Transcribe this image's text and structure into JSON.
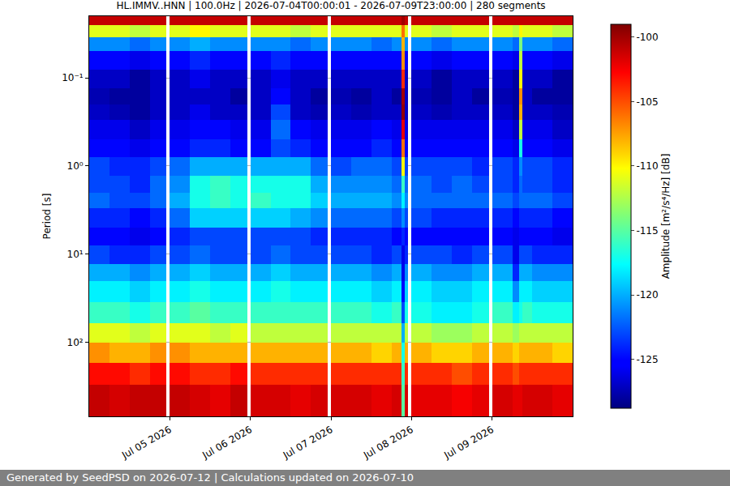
{
  "chart_data": {
    "type": "heatmap",
    "title": "HL.IMMV..HNN | 100.0Hz | 2026-07-04T00:00:01 - 2026-07-09T23:00:00 | 280 segments",
    "y_label": "Period [s]",
    "colorbar_label": "Amplitude [m²/s⁴/Hz] [dB]",
    "footer": "Generated by SeedPSD on 2026-07-12 | Calculations updated on 2026-07-10",
    "color": "jet",
    "log": "y",
    "grid": "y",
    "x_edges": [
      "2026-07-04 00:00",
      "2026-07-04 06:00",
      "2026-07-04 12:00",
      "2026-07-04 18:00",
      "2026-07-04 23:00",
      "2026-07-05 00:00",
      "2026-07-05 06:00",
      "2026-07-05 12:00",
      "2026-07-05 18:00",
      "2026-07-05 23:00",
      "2026-07-06 00:00",
      "2026-07-06 06:00",
      "2026-07-06 12:00",
      "2026-07-06 18:00",
      "2026-07-06 23:00",
      "2026-07-07 00:00",
      "2026-07-07 06:00",
      "2026-07-07 12:00",
      "2026-07-07 18:00",
      "2026-07-07 21:00",
      "2026-07-07 22:00",
      "2026-07-07 23:00",
      "2026-07-08 00:00",
      "2026-07-08 06:00",
      "2026-07-08 12:00",
      "2026-07-08 18:00",
      "2026-07-08 23:00",
      "2026-07-09 00:00",
      "2026-07-09 06:00",
      "2026-07-09 08:00",
      "2026-07-09 09:00",
      "2026-07-09 12:00",
      "2026-07-09 18:00",
      "2026-07-10 00:00"
    ],
    "y_edges": [
      0.02,
      0.025,
      0.035,
      0.05,
      0.08,
      0.13,
      0.2,
      0.3,
      0.5,
      0.8,
      1.3,
      2,
      3,
      5,
      8,
      13,
      20,
      35,
      60,
      100,
      170,
      300,
      690
    ],
    "z": [
      [
        -101,
        -101,
        -101,
        -101,
        null,
        -101,
        -101,
        -101,
        -101,
        null,
        -101,
        -101,
        -101,
        -101,
        null,
        -101,
        -101,
        -101,
        -101,
        -100,
        -101,
        null,
        -101,
        -101,
        -101,
        -101,
        null,
        -101,
        -101,
        -101,
        -101,
        -101,
        -101
      ],
      [
        -111,
        -111,
        -112,
        -111,
        null,
        -111,
        -110,
        -111,
        -111,
        null,
        -111,
        -111,
        -112,
        -111,
        null,
        -111,
        -111,
        -111,
        -111,
        -106,
        -111,
        null,
        -111,
        -112,
        -111,
        -111,
        null,
        -111,
        -112,
        -110,
        -111,
        -111,
        -112
      ],
      [
        -121,
        -121,
        -122,
        -121,
        null,
        -121,
        -120,
        -121,
        -121,
        null,
        -121,
        -121,
        -122,
        -121,
        null,
        -121,
        -121,
        -122,
        -121,
        -108,
        -121,
        null,
        -121,
        -122,
        -121,
        -121,
        null,
        -121,
        -122,
        -114,
        -121,
        -121,
        -122
      ],
      [
        -125,
        -125,
        -126,
        -125,
        null,
        -125,
        -124,
        -125,
        -125,
        null,
        -125,
        -124,
        -125,
        -125,
        null,
        -125,
        -125,
        -125,
        -125,
        -107,
        -125,
        null,
        -125,
        -126,
        -125,
        -125,
        null,
        -125,
        -126,
        -112,
        -125,
        -125,
        -126
      ],
      [
        -127,
        -127,
        -128,
        -127,
        null,
        -127,
        -126,
        -127,
        -127,
        null,
        -127,
        -126,
        -127,
        -127,
        null,
        -127,
        -127,
        -127,
        -127,
        -104,
        -127,
        null,
        -127,
        -128,
        -127,
        -127,
        null,
        -127,
        -128,
        -110,
        -127,
        -127,
        -128
      ],
      [
        -127.5,
        -128,
        -128,
        -127,
        null,
        -127,
        -127,
        -127,
        -128,
        null,
        -127,
        -125,
        -127,
        -128,
        null,
        -127.5,
        -128,
        -127,
        -128,
        -100,
        -127,
        null,
        -127.5,
        -128,
        -127,
        -128,
        null,
        -127.5,
        -128,
        -107,
        -127,
        -128,
        -128
      ],
      [
        -127,
        -127.5,
        -128,
        -127,
        null,
        -127,
        -126,
        -127,
        -127,
        null,
        -127,
        -123,
        -127,
        -127.5,
        null,
        -127,
        -127.5,
        -127,
        -127,
        -99.5,
        -127,
        null,
        -127,
        -127.5,
        -127,
        -127,
        null,
        -127,
        -128,
        -108,
        -127,
        -127,
        -127.5
      ],
      [
        -126,
        -126,
        -127,
        -126,
        null,
        -126,
        -125,
        -125,
        -126,
        null,
        -126,
        -122,
        -125,
        -126,
        null,
        -126,
        -126,
        -125,
        -126,
        -102,
        -126,
        null,
        -126,
        -126,
        -126,
        -126,
        null,
        -126,
        -127,
        -112,
        -126,
        -126,
        -127
      ],
      [
        -125,
        -125,
        -126,
        -125,
        null,
        -125,
        -124,
        -124,
        -125,
        null,
        -125,
        -123,
        -124,
        -125,
        null,
        -125,
        -125,
        -124,
        -125,
        -106,
        -125,
        null,
        -125,
        -125,
        -125,
        -125,
        null,
        -125,
        -126,
        -117,
        -125,
        -125,
        -126
      ],
      [
        -123,
        -124,
        -124,
        -123,
        null,
        -122,
        -120,
        -120,
        -120,
        null,
        -120,
        -120,
        -120,
        -122,
        null,
        -123,
        -122,
        -122,
        -123,
        -110,
        -123,
        null,
        -123,
        -123,
        -123,
        -124,
        null,
        -123,
        -124,
        -121,
        -123,
        -123,
        -124
      ],
      [
        -123,
        -123,
        -124,
        -122,
        null,
        -121,
        -117,
        -116,
        -117,
        null,
        -117,
        -117,
        -117,
        -120,
        null,
        -121,
        -121,
        -121,
        -122,
        -116,
        -122,
        null,
        -122,
        -123,
        -122,
        -123,
        null,
        -123,
        -124,
        -122,
        -123,
        -123,
        -124
      ],
      [
        -122,
        -123,
        -123,
        -122,
        null,
        -120,
        -117,
        -116,
        -117,
        null,
        -116,
        -117,
        -117,
        -119,
        null,
        -120,
        -120,
        -120,
        -121,
        -118,
        -121,
        null,
        -122,
        -122,
        -122,
        -122,
        null,
        -122,
        -123,
        -122,
        -122,
        -122,
        -123
      ],
      [
        -124,
        -124,
        -125,
        -124,
        null,
        -122,
        -119,
        -119,
        -119,
        null,
        -119,
        -119,
        -120,
        -121,
        null,
        -122,
        -122,
        -122,
        -123,
        -121,
        -123,
        null,
        -123,
        -124,
        -124,
        -124,
        null,
        -124,
        -125,
        -124,
        -124,
        -124,
        -125
      ],
      [
        -125,
        -125,
        -126,
        -125,
        null,
        -124,
        -123,
        -123,
        -123,
        null,
        -123,
        -123,
        -123,
        -124,
        null,
        -124,
        -124,
        -124,
        -125,
        -124,
        -125,
        null,
        -125,
        -125,
        -125,
        -125,
        null,
        -125,
        -126,
        -125,
        -125,
        -125,
        -126
      ],
      [
        -123,
        -124,
        -124,
        -123,
        null,
        -123,
        -122,
        -123,
        -123,
        null,
        -123,
        -122,
        -123,
        -123,
        null,
        -123,
        -123,
        -124,
        -123,
        -126,
        -124,
        null,
        -123,
        -123,
        -124,
        -123,
        null,
        -123,
        -126,
        -123,
        -123,
        -124,
        -124
      ],
      [
        -120,
        -120,
        -121,
        -120,
        null,
        -120,
        -119,
        -120,
        -120,
        null,
        -120,
        -119,
        -120,
        -120,
        null,
        -120,
        -120,
        -121,
        -120,
        -126,
        -121,
        null,
        -120,
        -121,
        -121,
        -120,
        null,
        -120,
        -124,
        -120,
        -120,
        -121,
        -121
      ],
      [
        -118,
        -118,
        -119,
        -118,
        null,
        -118,
        -117,
        -118,
        -118,
        null,
        -118,
        -117,
        -118,
        -118,
        null,
        -118,
        -118,
        -119,
        -118,
        -125,
        -119,
        null,
        -118,
        -119,
        -119,
        -118,
        null,
        -118,
        -121,
        -118,
        -118,
        -119,
        -119
      ],
      [
        -116,
        -116,
        -117,
        -116,
        null,
        -116,
        -115,
        -116,
        -116,
        null,
        -116,
        -116,
        -116,
        -116,
        null,
        -116,
        -116,
        -117,
        -116,
        -123,
        -117,
        null,
        -117,
        -118,
        -118,
        -117,
        null,
        -116,
        -118,
        -117,
        -116,
        -117,
        -117
      ],
      [
        -111,
        -111,
        -112,
        -111,
        null,
        -111,
        -111,
        -112,
        -111,
        null,
        -112,
        -112,
        -112,
        -112,
        null,
        -112,
        -112,
        -112,
        -112,
        -120,
        -112,
        null,
        -112,
        -113,
        -113,
        -112,
        null,
        -112,
        -113,
        -112,
        -112,
        -112,
        -112
      ],
      [
        -107,
        -108,
        -108,
        -107,
        null,
        -107,
        -108,
        -108,
        -108,
        null,
        -108,
        -108,
        -108,
        -108,
        null,
        -108,
        -108,
        -109,
        -108,
        -117,
        -108,
        null,
        -108,
        -109,
        -109,
        -108,
        null,
        -108,
        -109,
        -108,
        -108,
        -108,
        -109
      ],
      [
        -103,
        -103,
        -104,
        -103,
        null,
        -103,
        -104,
        -104,
        -103,
        null,
        -104,
        -104,
        -104,
        -104,
        null,
        -104,
        -104,
        -104,
        -104,
        -116,
        -104,
        null,
        -104,
        -104,
        -105,
        -104,
        null,
        -104,
        -105,
        -104,
        -104,
        -104,
        -104
      ],
      [
        -101,
        -101.5,
        -101,
        -101,
        null,
        -101,
        -101.5,
        -102,
        -101,
        null,
        -101.5,
        -101.5,
        -102,
        -101.5,
        null,
        -101.5,
        -101.5,
        -102,
        -101.5,
        -115,
        -101.5,
        null,
        -102,
        -102,
        -102.5,
        -102,
        null,
        -101.5,
        -102,
        -102,
        -101.5,
        -101.5,
        -102
      ]
    ],
    "xlim": [
      "2026-07-04 00:00",
      "2026-07-10 00:00"
    ],
    "xticks": [
      {
        "value": "2026-07-05",
        "label": "Jul 05 2026"
      },
      {
        "value": "2026-07-06",
        "label": "Jul 06 2026"
      },
      {
        "value": "2026-07-07",
        "label": "Jul 07 2026"
      },
      {
        "value": "2026-07-08",
        "label": "Jul 08 2026"
      },
      {
        "value": "2026-07-09",
        "label": "Jul 09 2026"
      }
    ],
    "ylim": [
      690,
      0.02
    ],
    "yticks": [
      {
        "value": 0.1,
        "label": "10⁻¹"
      },
      {
        "value": 1,
        "label": "10⁰"
      },
      {
        "value": 10,
        "label": "10¹"
      },
      {
        "value": 100,
        "label": "10²"
      }
    ],
    "zlim": [
      -128.8,
      -99
    ],
    "zticks": [
      -100,
      -105,
      -110,
      -115,
      -120,
      -125
    ]
  }
}
